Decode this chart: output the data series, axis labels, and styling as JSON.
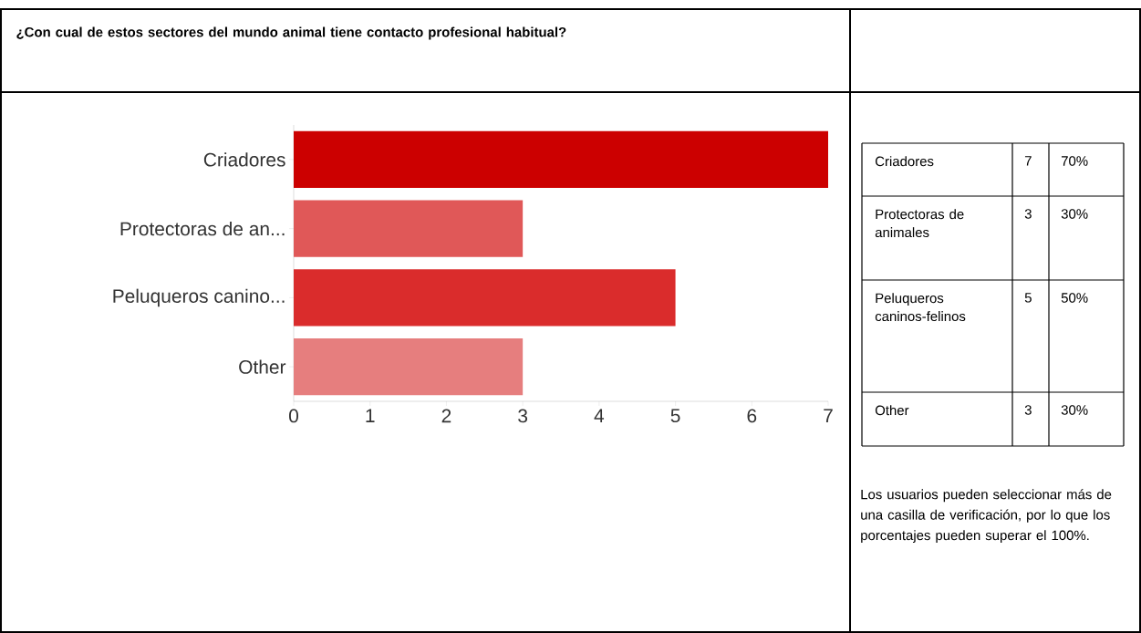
{
  "chart_data": [
    {
      "type": "bar",
      "orientation": "horizontal",
      "title": "¿Con cual de estos sectores del mundo animal tiene contacto profesional habitual?",
      "categories": [
        "Criadores",
        "Protectoras de an...",
        "Peluqueros canino...",
        "Other"
      ],
      "values": [
        7,
        3,
        5,
        3
      ],
      "colors": [
        "#cc0000",
        "#e05858",
        "#da2c2c",
        "#e67e7e"
      ],
      "xlim": [
        0,
        7
      ],
      "xticks": [
        0,
        1,
        2,
        3,
        4,
        5,
        6,
        7
      ],
      "grid": false
    },
    {
      "type": "other",
      "categories": [
        "Criadores",
        "Protectoras de animales",
        "Peluqueros caninos-felinos",
        "Other"
      ],
      "data_labels": true,
      "series": [
        {
          "values": [
            7,
            3,
            5,
            3
          ]
        },
        {
          "values": [
            70,
            30,
            50,
            30
          ],
          "value_labels": [
            "70%",
            "30%",
            "50%",
            "30%"
          ]
        }
      ],
      "annotations": [
        "Los usuarios pueden seleccionar más de una casilla de verificación, por lo que los porcentajes pueden superar el 100%."
      ]
    }
  ]
}
